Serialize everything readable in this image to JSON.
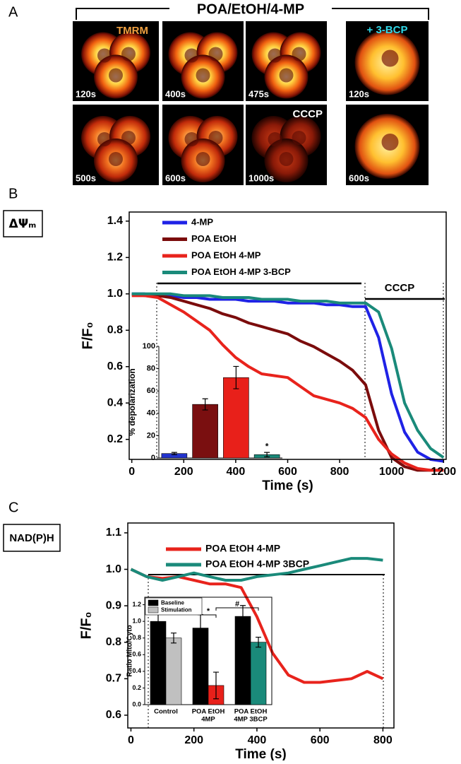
{
  "panel_labels": [
    "A",
    "B",
    "C"
  ],
  "panel_a": {
    "title": "POA/EtOH/4-MP",
    "images": [
      {
        "time": "120s",
        "tag": "TMRM"
      },
      {
        "time": "400s"
      },
      {
        "time": "475s"
      },
      {
        "time": "120s",
        "tag": "+ 3-BCP"
      },
      {
        "time": "500s"
      },
      {
        "time": "600s"
      },
      {
        "time": "1000s",
        "tag": "CCCP"
      },
      {
        "time": "600s"
      }
    ]
  },
  "chart_data": [
    {
      "type": "line",
      "tag": "ΔΨₘ",
      "x": [
        0,
        50,
        100,
        150,
        200,
        250,
        300,
        350,
        400,
        450,
        500,
        550,
        600,
        650,
        700,
        750,
        800,
        850,
        900,
        950,
        1000,
        1050,
        1100,
        1150,
        1200
      ],
      "xlim": [
        -10,
        1210
      ],
      "xticks": [
        0,
        200,
        400,
        600,
        800,
        1000,
        1200
      ],
      "ylim": [
        0.09,
        1.45
      ],
      "yticks": [
        0.2,
        0.4,
        0.6,
        0.8,
        {
          "value": 1,
          "label": "1.0"
        },
        1.2,
        1.4
      ],
      "xlabel": "Time (s)",
      "ylabel": "F/F₀",
      "annotation": "CCCP",
      "series": [
        {
          "name": "4-MP",
          "color": "#1f22e6",
          "values": [
            1.0,
            1.0,
            0.99,
            0.99,
            0.98,
            0.98,
            0.97,
            0.97,
            0.97,
            0.96,
            0.96,
            0.96,
            0.95,
            0.95,
            0.95,
            0.94,
            0.94,
            0.93,
            0.93,
            0.76,
            0.45,
            0.24,
            0.13,
            0.09,
            0.08
          ]
        },
        {
          "name": "POA EtOH",
          "color": "#7b0c0c",
          "values": [
            1.0,
            0.99,
            0.99,
            0.98,
            0.96,
            0.94,
            0.92,
            0.89,
            0.87,
            0.84,
            0.82,
            0.8,
            0.78,
            0.74,
            0.71,
            0.67,
            0.63,
            0.58,
            0.5,
            0.25,
            0.1,
            0.05,
            0.03,
            0.03,
            0.03
          ]
        },
        {
          "name": "POA EtOH 4-MP",
          "color": "#e8231c",
          "values": [
            0.99,
            0.99,
            0.98,
            0.94,
            0.9,
            0.85,
            0.8,
            0.72,
            0.65,
            0.6,
            0.56,
            0.55,
            0.54,
            0.49,
            0.44,
            0.42,
            0.4,
            0.37,
            0.32,
            0.2,
            0.12,
            0.07,
            0.04,
            0.03,
            0.03
          ]
        },
        {
          "name": "POA EtOH 4-MP 3-BCP",
          "color": "#1a8a7a",
          "values": [
            1.0,
            1.0,
            1.0,
            1.0,
            0.99,
            0.99,
            0.99,
            0.98,
            0.98,
            0.98,
            0.97,
            0.97,
            0.97,
            0.96,
            0.96,
            0.96,
            0.95,
            0.95,
            0.95,
            0.9,
            0.7,
            0.4,
            0.25,
            0.15,
            0.1
          ]
        }
      ]
    },
    {
      "type": "bar",
      "ylabel": "% depolarization",
      "ylim": [
        0,
        100
      ],
      "yticks": [
        0,
        20,
        40,
        60,
        80,
        100
      ],
      "values": [
        4,
        48,
        72,
        3
      ],
      "errors": [
        1,
        5,
        10,
        2
      ],
      "colors": [
        "#2233cc",
        "#7a0f10",
        "#e8201a",
        "#1a8a7a"
      ],
      "annotation": "*"
    },
    {
      "type": "line",
      "tag": "NAD(P)H",
      "x": [
        0,
        50,
        100,
        150,
        200,
        250,
        300,
        350,
        400,
        450,
        500,
        550,
        600,
        650,
        700,
        750,
        800
      ],
      "xlim": [
        -10,
        835
      ],
      "xticks": [
        0,
        200,
        400,
        600,
        800
      ],
      "ylim": [
        0.565,
        1.127
      ],
      "yticks": [
        0.6,
        0.7,
        0.8,
        0.9,
        {
          "value": 1,
          "label": "1.0"
        },
        1.1
      ],
      "xlabel": "Time (s)",
      "ylabel": "F/F₀",
      "series": [
        {
          "name": "POA EtOH 4-MP",
          "color": "#e8231c",
          "values": [
            1.0,
            0.98,
            0.975,
            0.98,
            0.97,
            0.96,
            0.96,
            0.95,
            0.87,
            0.77,
            0.71,
            0.69,
            0.69,
            0.695,
            0.7,
            0.72,
            0.7
          ]
        },
        {
          "name": "POA EtOH 4-MP 3BCP",
          "color": "#1a8a7a",
          "values": [
            1.0,
            0.98,
            0.97,
            0.98,
            0.99,
            0.98,
            0.97,
            0.97,
            0.98,
            0.985,
            0.99,
            1.0,
            1.01,
            1.02,
            1.03,
            1.03,
            1.025
          ]
        }
      ]
    },
    {
      "type": "bar",
      "ylabel": "Ratio Mito/Cyto",
      "ylim": [
        0,
        1.29
      ],
      "yticks": [
        {
          "value": 0,
          "label": "0.0"
        },
        0.2,
        0.4,
        0.6,
        0.8,
        {
          "value": 1,
          "label": "1.0"
        },
        1.2
      ],
      "categories": [
        [
          "Control"
        ],
        [
          "POA  EtOH",
          "4MP"
        ],
        [
          "POA  EtOH",
          "4MP 3BCP"
        ]
      ],
      "series": [
        {
          "name": "Baseline",
          "color": "#000000",
          "values": [
            1.0,
            0.92,
            1.06
          ],
          "errors": [
            0.12,
            0.16,
            0.13
          ]
        },
        {
          "name": "Stimulation",
          "color": "#c0c0c0",
          "colors": [
            "#c0c0c0",
            "#e8201a",
            "#1a8a7a"
          ],
          "values": [
            0.8,
            0.23,
            0.75
          ],
          "errors": [
            0.06,
            0.16,
            0.06
          ]
        }
      ],
      "annotations": [
        "*",
        "#"
      ]
    }
  ]
}
